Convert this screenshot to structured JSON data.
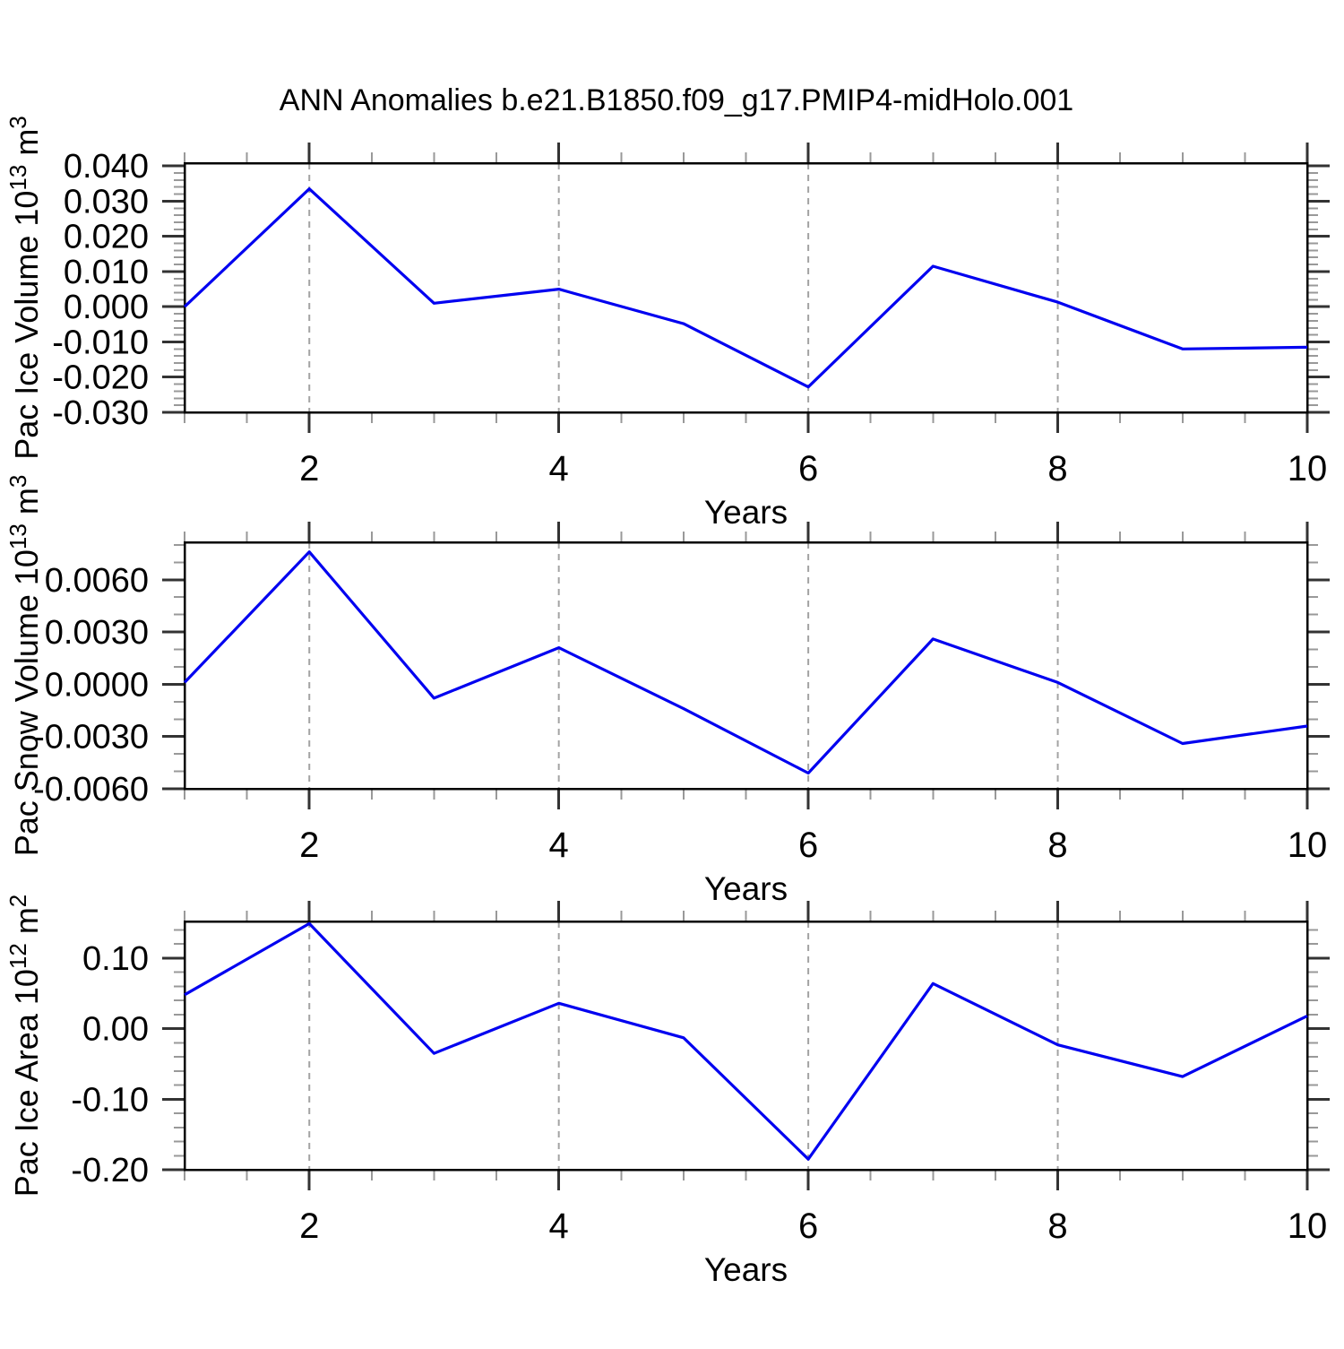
{
  "title": "ANN Anomalies b.e21.B1850.f09_g17.PMIP4-midHolo.001",
  "colors": {
    "line": "#0000f0",
    "grid": "#a3a3a3",
    "frame": "#000000",
    "tick_major": "#333333",
    "tick_minor": "#999999",
    "text": "#000000",
    "background": "#ffffff"
  },
  "chart_data": [
    {
      "type": "line",
      "name": "pac-ice-volume",
      "ylabel": "Pac Ice Volume 10^13 m^3",
      "ylabel_segments": [
        {
          "t": "Pac Ice Volume 10"
        },
        {
          "sup": "13"
        },
        {
          "t": " m"
        },
        {
          "sup": "3"
        }
      ],
      "xlabel": "Years",
      "x": [
        1,
        2,
        3,
        4,
        5,
        6,
        7,
        8,
        9,
        10
      ],
      "values": [
        0.0,
        0.0335,
        0.001,
        0.005,
        -0.0048,
        -0.0228,
        0.0115,
        0.0013,
        -0.012,
        -0.0115
      ],
      "ylim": [
        -0.03,
        0.0408
      ],
      "xlim": [
        1,
        10
      ],
      "ymajors": [
        {
          "v": 0.04,
          "label": "0.040"
        },
        {
          "v": 0.03,
          "label": "0.030"
        },
        {
          "v": 0.02,
          "label": "0.020"
        },
        {
          "v": 0.01,
          "label": "0.010"
        },
        {
          "v": 0.0,
          "label": "0.000"
        },
        {
          "v": -0.01,
          "label": "-0.010"
        },
        {
          "v": -0.02,
          "label": "-0.020"
        },
        {
          "v": -0.03,
          "label": "-0.030"
        }
      ],
      "yminor_step": 0.002,
      "ymajor_step": 0.01,
      "xticks": [
        {
          "v": 2,
          "label": "2"
        },
        {
          "v": 4,
          "label": "4"
        },
        {
          "v": 6,
          "label": "6"
        },
        {
          "v": 8,
          "label": "8"
        },
        {
          "v": 10,
          "label": "10"
        }
      ],
      "xminor_step": 0.5,
      "grid_x": [
        2,
        4,
        6,
        8
      ],
      "grid_on": true
    },
    {
      "type": "line",
      "name": "pac-snow-volume",
      "ylabel": "Pac Snow Volume 10^13 m^3",
      "ylabel_segments": [
        {
          "t": "Pac Snow Volume 10"
        },
        {
          "sup": "13"
        },
        {
          "t": " m"
        },
        {
          "sup": "3"
        }
      ],
      "xlabel": "Years",
      "x": [
        1,
        2,
        3,
        4,
        5,
        6,
        7,
        8,
        9,
        10
      ],
      "values": [
        0.0001,
        0.0076,
        -0.0008,
        0.0021,
        -0.0014,
        -0.0051,
        0.0026,
        0.0001,
        -0.0034,
        -0.0024
      ],
      "ylim": [
        -0.006,
        0.00815
      ],
      "xlim": [
        1,
        10
      ],
      "ymajors": [
        {
          "v": 0.006,
          "label": "0.0060"
        },
        {
          "v": 0.003,
          "label": "0.0030"
        },
        {
          "v": 0.0,
          "label": "0.0000"
        },
        {
          "v": -0.003,
          "label": "-0.0030"
        },
        {
          "v": -0.006,
          "label": "-0.0060"
        }
      ],
      "yminor_step": 0.001,
      "ymajor_step": 0.003,
      "xticks": [
        {
          "v": 2,
          "label": "2"
        },
        {
          "v": 4,
          "label": "4"
        },
        {
          "v": 6,
          "label": "6"
        },
        {
          "v": 8,
          "label": "8"
        },
        {
          "v": 10,
          "label": "10"
        }
      ],
      "xminor_step": 0.5,
      "grid_x": [
        2,
        4,
        6,
        8
      ],
      "grid_on": true
    },
    {
      "type": "line",
      "name": "pac-ice-area",
      "ylabel": "Pac Ice Area 10^12 m^2",
      "ylabel_segments": [
        {
          "t": "Pac Ice Area 10"
        },
        {
          "sup": "12"
        },
        {
          "t": " m"
        },
        {
          "sup": "2"
        }
      ],
      "xlabel": "Years",
      "x": [
        1,
        2,
        3,
        4,
        5,
        6,
        7,
        8,
        9,
        10
      ],
      "values": [
        0.048,
        0.149,
        -0.035,
        0.036,
        -0.013,
        -0.185,
        0.064,
        -0.023,
        -0.068,
        0.018
      ],
      "ylim": [
        -0.2,
        0.152
      ],
      "xlim": [
        1,
        10
      ],
      "ymajors": [
        {
          "v": 0.1,
          "label": "0.10"
        },
        {
          "v": 0.0,
          "label": "0.00"
        },
        {
          "v": -0.1,
          "label": "-0.10"
        },
        {
          "v": -0.2,
          "label": "-0.20"
        }
      ],
      "yminor_step": 0.02,
      "ymajor_step": 0.1,
      "xticks": [
        {
          "v": 2,
          "label": "2"
        },
        {
          "v": 4,
          "label": "4"
        },
        {
          "v": 6,
          "label": "6"
        },
        {
          "v": 8,
          "label": "8"
        },
        {
          "v": 10,
          "label": "10"
        }
      ],
      "xminor_step": 0.5,
      "grid_x": [
        2,
        4,
        6,
        8
      ],
      "grid_on": true
    }
  ]
}
